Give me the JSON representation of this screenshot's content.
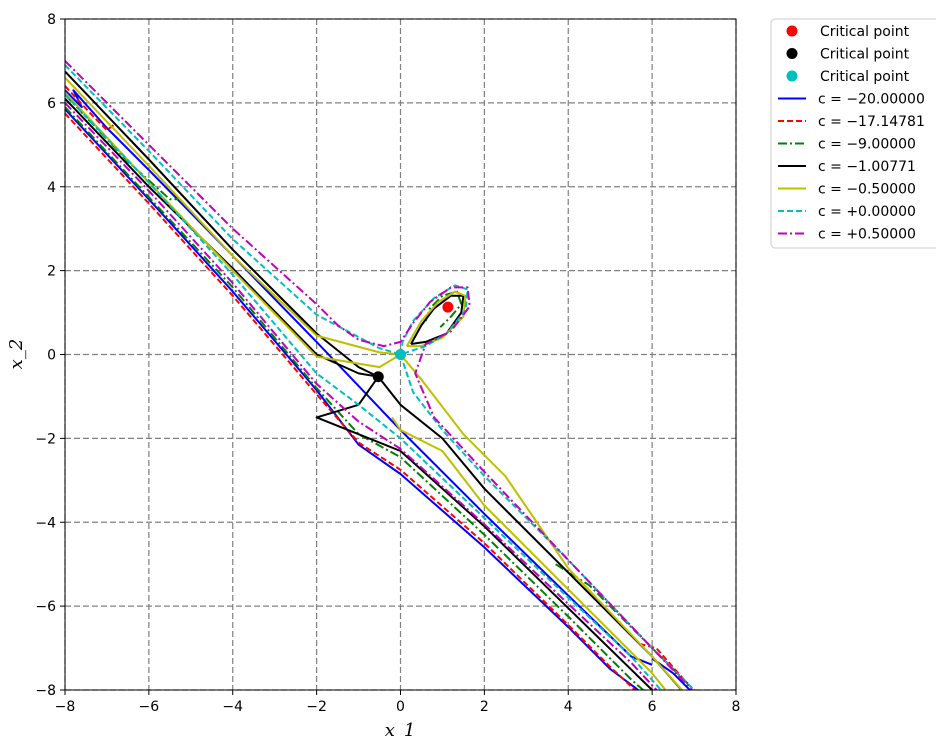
{
  "chart_data": {
    "type": "line",
    "title": "",
    "xlabel": "x_1",
    "ylabel": "x_2",
    "xlim": [
      -8,
      8
    ],
    "ylim": [
      -8,
      8
    ],
    "x_ticks": [
      -8,
      -6,
      -4,
      -2,
      0,
      2,
      4,
      6,
      8
    ],
    "y_ticks": [
      -8,
      -6,
      -4,
      -2,
      0,
      2,
      4,
      6,
      8
    ],
    "x_tick_labels": [
      "−8",
      "−6",
      "−4",
      "−2",
      "0",
      "2",
      "4",
      "6",
      "8"
    ],
    "y_tick_labels": [
      "−8",
      "−6",
      "−4",
      "−2",
      "0",
      "2",
      "4",
      "6",
      "8"
    ],
    "grid": true,
    "grid_style": "dashed",
    "legend_placement": "outside-top-right",
    "critical_points": [
      {
        "name": "Critical point",
        "x": 1.13,
        "y": 1.13,
        "color": "#ff0000"
      },
      {
        "name": "Critical point",
        "x": -0.53,
        "y": -0.53,
        "color": "#000000"
      },
      {
        "name": "Critical point",
        "x": 0.0,
        "y": 0.0,
        "color": "#00bfbf"
      }
    ],
    "series": [
      {
        "name": "c = −20.00000",
        "legend_label": "c = −20.00000",
        "color": "#0000ff",
        "dash": "solid",
        "lines": [
          [
            [
              -8.0,
              6.3
            ],
            [
              -7.6,
              5.9
            ],
            [
              -7.8,
              6.3
            ],
            [
              -7.0,
              5.4
            ],
            [
              -6.0,
              4.4
            ],
            [
              -4.0,
              2.35
            ],
            [
              -2.0,
              0.3
            ],
            [
              0.0,
              -1.8
            ],
            [
              2.0,
              -3.8
            ],
            [
              4.0,
              -5.75
            ],
            [
              5.5,
              -7.2
            ],
            [
              6.0,
              -7.4
            ]
          ],
          [
            [
              -8.0,
              5.85
            ],
            [
              -6.0,
              3.7
            ],
            [
              -4.0,
              1.5
            ],
            [
              -2.0,
              -0.85
            ],
            [
              -1.0,
              -2.15
            ],
            [
              0.0,
              -2.85
            ],
            [
              2.0,
              -4.6
            ],
            [
              4.0,
              -6.5
            ],
            [
              5.0,
              -7.5
            ],
            [
              5.8,
              -8.1
            ]
          ],
          [
            [
              6.0,
              -7.25
            ],
            [
              6.5,
              -7.6
            ],
            [
              7.0,
              -8.1
            ]
          ]
        ]
      },
      {
        "name": "c = −17.14781",
        "legend_label": "c = −17.14781",
        "color": "#ff0000",
        "dash": "dashed",
        "lines": [
          [
            [
              -8.0,
              6.4
            ],
            [
              -7.3,
              5.65
            ],
            [
              -7.0,
              5.35
            ],
            [
              -6.8,
              5.5
            ]
          ],
          [
            [
              -8.0,
              5.75
            ],
            [
              -6.0,
              3.6
            ],
            [
              -4.0,
              1.4
            ],
            [
              -2.0,
              -0.95
            ],
            [
              -1.0,
              -2.1
            ],
            [
              0.0,
              -2.75
            ],
            [
              2.0,
              -4.5
            ],
            [
              4.0,
              -6.45
            ],
            [
              5.0,
              -7.45
            ],
            [
              5.7,
              -8.1
            ]
          ],
          [
            [
              5.7,
              -6.9
            ],
            [
              6.1,
              -7.0
            ],
            [
              6.8,
              -7.8
            ]
          ]
        ]
      },
      {
        "name": "c = −9.00000",
        "legend_label": "c = −9.00000",
        "color": "#008000",
        "dash": "dashdot",
        "lines": [
          [
            [
              -8.0,
              6.2
            ],
            [
              -6.5,
              4.6
            ],
            [
              -5.5,
              3.7
            ],
            [
              -5.3,
              3.7
            ]
          ],
          [
            [
              -8.0,
              5.9
            ],
            [
              -6.0,
              3.75
            ],
            [
              -4.0,
              1.6
            ],
            [
              -2.0,
              -0.8
            ],
            [
              -1.0,
              -1.9
            ],
            [
              0.0,
              -2.45
            ],
            [
              2.0,
              -4.3
            ],
            [
              4.0,
              -6.25
            ],
            [
              5.5,
              -7.75
            ],
            [
              5.9,
              -8.1
            ]
          ],
          [
            [
              3.7,
              -5.0
            ],
            [
              4.5,
              -5.5
            ],
            [
              5.5,
              -6.5
            ],
            [
              6.5,
              -7.5
            ],
            [
              7.0,
              -8.0
            ]
          ],
          [
            [
              0.6,
              0.8
            ],
            [
              0.7,
              1.1
            ],
            [
              1.0,
              1.4
            ],
            [
              1.35,
              1.5
            ],
            [
              1.45,
              1.2
            ],
            [
              1.2,
              0.9
            ],
            [
              0.95,
              0.65
            ]
          ]
        ]
      },
      {
        "name": "c = −1.00771",
        "legend_label": "c = −1.00771",
        "color": "#000000",
        "dash": "solid",
        "lines": [
          [
            [
              -8.0,
              6.75
            ],
            [
              -6.0,
              4.65
            ],
            [
              -4.0,
              2.5
            ],
            [
              -2.0,
              0.5
            ],
            [
              -1.0,
              -0.3
            ],
            [
              -0.53,
              -0.53
            ]
          ],
          [
            [
              -0.53,
              -0.53
            ],
            [
              0.0,
              -1.2
            ],
            [
              1.0,
              -2.0
            ],
            [
              2.0,
              -3.2
            ],
            [
              4.0,
              -5.2
            ],
            [
              6.0,
              -7.2
            ],
            [
              6.7,
              -8.0
            ]
          ],
          [
            [
              -8.0,
              6.1
            ],
            [
              -6.0,
              4.0
            ],
            [
              -4.0,
              2.05
            ],
            [
              -2.0,
              0.0
            ],
            [
              -1.0,
              -0.45
            ],
            [
              -0.53,
              -0.53
            ]
          ],
          [
            [
              -0.53,
              -0.53
            ],
            [
              -1.0,
              -1.2
            ],
            [
              -2.0,
              -1.5
            ],
            [
              0.0,
              -2.3
            ],
            [
              2.0,
              -4.1
            ],
            [
              4.0,
              -6.05
            ],
            [
              6.0,
              -8.0
            ]
          ],
          [
            [
              0.25,
              0.25
            ],
            [
              0.5,
              0.7
            ],
            [
              0.8,
              1.1
            ],
            [
              1.2,
              1.4
            ],
            [
              1.5,
              1.4
            ],
            [
              1.45,
              1.0
            ],
            [
              1.1,
              0.5
            ],
            [
              0.6,
              0.3
            ],
            [
              0.25,
              0.25
            ]
          ]
        ]
      },
      {
        "name": "c = −0.50000",
        "legend_label": "c = −0.50000",
        "color": "#bfbf00",
        "dash": "solid",
        "lines": [
          [
            [
              -8.0,
              6.6
            ],
            [
              -6.0,
              4.5
            ],
            [
              -4.0,
              2.35
            ],
            [
              -2.0,
              0.45
            ],
            [
              -0.5,
              0.05
            ],
            [
              0.0,
              0.0
            ]
          ],
          [
            [
              0.0,
              0.0
            ],
            [
              0.5,
              -0.6
            ],
            [
              1.5,
              -1.9
            ],
            [
              2.5,
              -2.9
            ],
            [
              4.0,
              -5.1
            ],
            [
              6.0,
              -7.2
            ],
            [
              6.8,
              -8.1
            ]
          ],
          [
            [
              -8.0,
              6.25
            ],
            [
              -6.0,
              4.1
            ],
            [
              -4.0,
              2.0
            ],
            [
              -2.0,
              -0.05
            ],
            [
              -0.5,
              -0.3
            ],
            [
              0.0,
              0.0
            ]
          ],
          [
            [
              -0.2,
              -1.5
            ],
            [
              0.0,
              -1.8
            ],
            [
              1.0,
              -2.3
            ],
            [
              2.0,
              -3.6
            ],
            [
              4.0,
              -5.6
            ],
            [
              6.0,
              -7.6
            ],
            [
              6.4,
              -8.1
            ]
          ],
          [
            [
              0.15,
              0.2
            ],
            [
              0.5,
              0.8
            ],
            [
              0.9,
              1.25
            ],
            [
              1.3,
              1.5
            ],
            [
              1.55,
              1.4
            ],
            [
              1.5,
              0.9
            ],
            [
              1.0,
              0.4
            ],
            [
              0.5,
              0.2
            ],
            [
              0.15,
              0.2
            ]
          ]
        ]
      },
      {
        "name": "c = +0.00000",
        "legend_label": "c = +0.00000",
        "color": "#00bfbf",
        "dash": "dashed",
        "lines": [
          [
            [
              -8.0,
              6.9
            ],
            [
              -6.0,
              4.85
            ],
            [
              -4.0,
              2.75
            ],
            [
              -2.0,
              0.95
            ],
            [
              -0.5,
              0.15
            ],
            [
              0.0,
              0.0
            ]
          ],
          [
            [
              0.0,
              0.0
            ],
            [
              0.3,
              -0.9
            ],
            [
              1.0,
              -1.8
            ],
            [
              2.0,
              -2.9
            ],
            [
              4.0,
              -4.9
            ],
            [
              6.0,
              -7.0
            ],
            [
              7.0,
              -8.0
            ]
          ],
          [
            [
              0.0,
              0.0
            ],
            [
              0.05,
              0.3
            ],
            [
              0.3,
              0.8
            ],
            [
              0.8,
              1.35
            ],
            [
              1.3,
              1.65
            ],
            [
              1.6,
              1.55
            ],
            [
              1.55,
              1.05
            ],
            [
              1.1,
              0.5
            ],
            [
              0.6,
              0.2
            ],
            [
              0.0,
              0.0
            ]
          ],
          [
            [
              -8.0,
              6.2
            ],
            [
              -6.0,
              4.1
            ],
            [
              -4.0,
              1.9
            ],
            [
              -2.0,
              -0.45
            ],
            [
              -1.0,
              -1.2
            ],
            [
              0.0,
              -2.0
            ],
            [
              2.0,
              -3.9
            ],
            [
              4.0,
              -5.8
            ],
            [
              5.5,
              -7.2
            ],
            [
              6.3,
              -8.1
            ]
          ]
        ]
      },
      {
        "name": "c = +0.50000",
        "legend_label": "c = +0.50000",
        "color": "#bf00bf",
        "dash": "dashdot",
        "lines": [
          [
            [
              -8.0,
              7.0
            ],
            [
              -6.0,
              5.0
            ],
            [
              -4.0,
              3.0
            ],
            [
              -2.0,
              1.2
            ],
            [
              -1.5,
              0.7
            ],
            [
              -1.0,
              0.35
            ],
            [
              -0.4,
              0.2
            ],
            [
              0.0,
              0.3
            ],
            [
              0.3,
              0.75
            ],
            [
              0.7,
              1.25
            ],
            [
              1.2,
              1.6
            ],
            [
              1.6,
              1.6
            ],
            [
              1.65,
              1.15
            ],
            [
              1.2,
              0.55
            ],
            [
              0.6,
              0.25
            ],
            [
              0.35,
              -0.45
            ],
            [
              0.8,
              -1.5
            ],
            [
              2.0,
              -2.8
            ],
            [
              4.0,
              -4.9
            ],
            [
              6.0,
              -7.0
            ],
            [
              7.05,
              -8.1
            ]
          ],
          [
            [
              -8.0,
              6.0
            ],
            [
              -6.0,
              3.9
            ],
            [
              -4.0,
              1.7
            ],
            [
              -2.0,
              -0.7
            ],
            [
              -1.0,
              -1.6
            ],
            [
              0.0,
              -2.25
            ],
            [
              2.0,
              -4.05
            ],
            [
              4.0,
              -5.95
            ],
            [
              5.5,
              -7.35
            ],
            [
              6.2,
              -8.1
            ]
          ]
        ]
      }
    ]
  }
}
